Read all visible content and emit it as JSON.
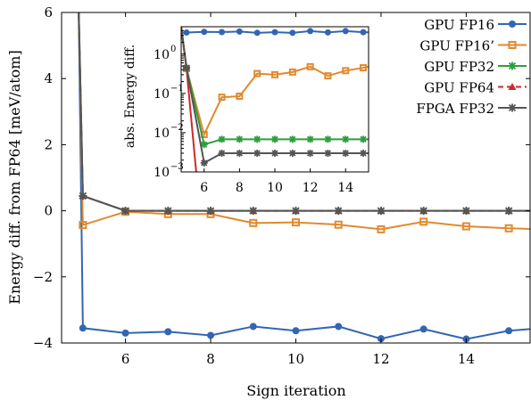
{
  "chart_data": [
    {
      "type": "line",
      "title": "",
      "xlabel": "Sign iteration",
      "ylabel": "Energy diff. from FP64 [meV/atom]",
      "xlim": [
        4.5,
        15.5
      ],
      "ylim": [
        -4,
        6
      ],
      "xticks": [
        6,
        8,
        10,
        12,
        14
      ],
      "yticks": [
        -4,
        -2,
        0,
        2,
        4,
        6
      ],
      "xtick_labels": [
        "6",
        "8",
        "10",
        "12",
        "14"
      ],
      "ytick_labels": [
        "−4",
        "−2",
        "0",
        "2",
        "4",
        "6"
      ],
      "legend_position": "top-right",
      "grid": false,
      "series": [
        {
          "name": "GPU FP16",
          "color": "#3366b2",
          "marker": "circle",
          "x": [
            4.9,
            5,
            6,
            7,
            8,
            9,
            10,
            11,
            12,
            13,
            14,
            15,
            15.5
          ],
          "y": [
            6.2,
            -3.55,
            -3.7,
            -3.66,
            -3.77,
            -3.5,
            -3.63,
            -3.5,
            -3.87,
            -3.58,
            -3.88,
            -3.63,
            -3.58
          ]
        },
        {
          "name": "GPU FP16’",
          "color": "#e08a2f",
          "marker": "square",
          "x": [
            4.9,
            5,
            6,
            7,
            8,
            9,
            10,
            11,
            12,
            13,
            14,
            15,
            15.5
          ],
          "y": [
            6.2,
            -0.43,
            -0.03,
            -0.1,
            -0.1,
            -0.37,
            -0.35,
            -0.42,
            -0.56,
            -0.33,
            -0.47,
            -0.53,
            -0.55
          ]
        },
        {
          "name": "GPU FP32",
          "color": "#2e9e3e",
          "marker": "cross",
          "x": [
            4.9,
            5,
            6,
            7,
            8,
            9,
            10,
            11,
            12,
            13,
            14,
            15,
            15.5
          ],
          "y": [
            6.2,
            0.45,
            0.0,
            0.0,
            0.0,
            0.0,
            0.0,
            0.0,
            0.0,
            0.0,
            0.0,
            0.0,
            0.0
          ]
        },
        {
          "name": "GPU FP64",
          "color": "#cc2a2a",
          "marker": "triangle",
          "x": [
            4.9,
            5,
            6,
            7,
            8,
            9,
            10,
            11,
            12,
            13,
            14,
            15,
            15.5
          ],
          "y": [
            6.2,
            0.45,
            0.0,
            0.0,
            0.0,
            0.0,
            0.0,
            0.0,
            0.0,
            0.0,
            0.0,
            0.0,
            0.0
          ]
        },
        {
          "name": "FPGA FP32",
          "color": "#555555",
          "marker": "cross",
          "x": [
            4.9,
            5,
            6,
            7,
            8,
            9,
            10,
            11,
            12,
            13,
            14,
            15,
            15.5
          ],
          "y": [
            6.2,
            0.45,
            0.0,
            0.0,
            0.0,
            0.0,
            0.0,
            0.0,
            0.0,
            0.0,
            0.0,
            0.0,
            0.0
          ]
        }
      ]
    },
    {
      "type": "line",
      "title": "",
      "xlabel": "",
      "ylabel": "abs. Energy diff.",
      "xlim": [
        4.7,
        15.3
      ],
      "ylim": [
        0.001,
        5
      ],
      "yscale": "log",
      "xticks": [
        6,
        8,
        10,
        12,
        14
      ],
      "yticks": [
        0.001,
        0.01,
        0.1,
        1
      ],
      "xtick_labels": [
        "6",
        "8",
        "10",
        "12",
        "14"
      ],
      "ytick_labels": [
        "10",
        "10",
        "10",
        "10"
      ],
      "ytick_exponents": [
        "−3",
        "−2",
        "−1",
        "0"
      ],
      "grid": false,
      "series": [
        {
          "name": "GPU FP16",
          "x": [
            4.7,
            5,
            6,
            7,
            8,
            9,
            10,
            11,
            12,
            13,
            14,
            15,
            15.3
          ],
          "y": [
            3.5,
            3.55,
            3.7,
            3.66,
            3.77,
            3.5,
            3.63,
            3.5,
            3.87,
            3.58,
            3.88,
            3.63,
            3.6
          ]
        },
        {
          "name": "GPU FP16’",
          "x": [
            4.7,
            5,
            6,
            7,
            8,
            9,
            10,
            11,
            12,
            13,
            14,
            15,
            15.3
          ],
          "y": [
            5,
            0.43,
            0.009,
            0.08,
            0.085,
            0.32,
            0.3,
            0.35,
            0.48,
            0.28,
            0.38,
            0.45,
            0.48
          ]
        },
        {
          "name": "GPU FP32",
          "x": [
            4.7,
            5,
            6,
            7,
            8,
            9,
            10,
            11,
            12,
            13,
            14,
            15,
            15.3
          ],
          "y": [
            5,
            0.45,
            0.005,
            0.0068,
            0.0068,
            0.0068,
            0.0068,
            0.0068,
            0.0068,
            0.0068,
            0.0068,
            0.0068,
            0.0068
          ]
        },
        {
          "name": "GPU FP64",
          "x": [
            4.7,
            5,
            5.55
          ],
          "y": [
            5,
            0.45,
            0.001
          ]
        },
        {
          "name": "FPGA FP32",
          "x": [
            4.7,
            5,
            6,
            7,
            8,
            9,
            10,
            11,
            12,
            13,
            14,
            15,
            15.3
          ],
          "y": [
            5,
            0.45,
            0.0017,
            0.003,
            0.003,
            0.003,
            0.003,
            0.003,
            0.003,
            0.003,
            0.003,
            0.003,
            0.003
          ]
        }
      ]
    }
  ]
}
